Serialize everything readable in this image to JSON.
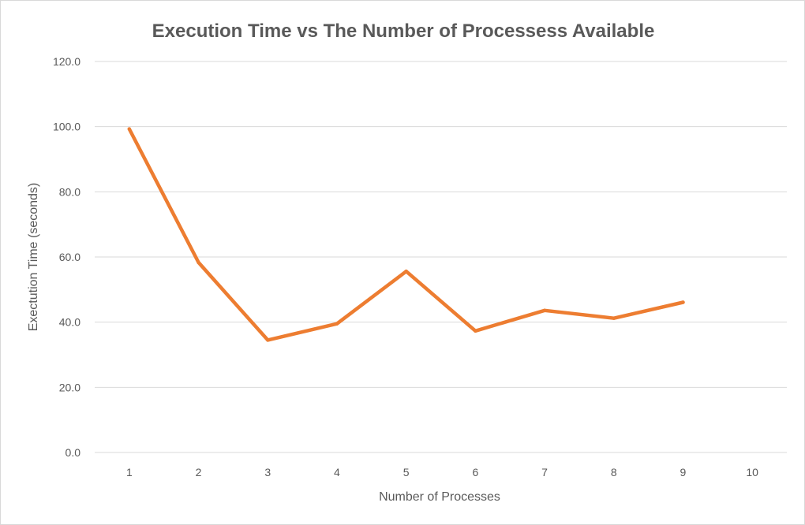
{
  "chart_data": {
    "type": "line",
    "title": "Execution Time vs The Number of Processess Available",
    "xlabel": "Number of Processes",
    "ylabel": "Exectution Time (seconds)",
    "categories": [
      "1",
      "2",
      "3",
      "4",
      "5",
      "6",
      "7",
      "8",
      "9",
      "10"
    ],
    "series": [
      {
        "name": "",
        "color": "#ED7D31",
        "values": [
          99.3,
          58.3,
          34.5,
          39.5,
          55.6,
          37.3,
          43.6,
          41.2,
          46.1,
          null
        ]
      }
    ],
    "ylim": [
      0,
      120
    ],
    "yticks": [
      "0.0",
      "20.0",
      "40.0",
      "60.0",
      "80.0",
      "100.0",
      "120.0"
    ],
    "grid": "horizontal",
    "legend": "none"
  }
}
